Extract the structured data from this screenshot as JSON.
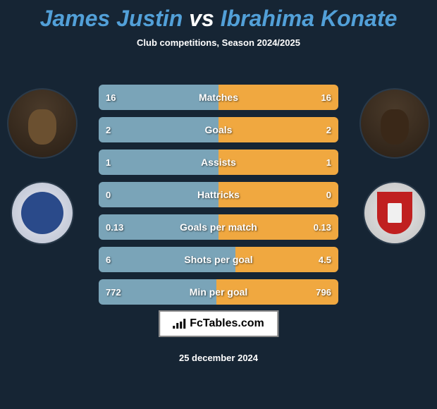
{
  "title": {
    "player1": "James Justin",
    "vs": "vs",
    "player2": "Ibrahima Konate"
  },
  "subtitle": "Club competitions, Season 2024/2025",
  "date_line": "25 december 2024",
  "brand": "FcTables.com",
  "colors": {
    "bg": "#162534",
    "bar_left": "#7aa4b8",
    "bar_right": "#f0a840",
    "accent": "#52a0d8",
    "text": "#ffffff"
  },
  "stats": [
    {
      "label": "Matches",
      "left_val": "16",
      "right_val": "16",
      "left_pct": 50,
      "right_pct": 50
    },
    {
      "label": "Goals",
      "left_val": "2",
      "right_val": "2",
      "left_pct": 50,
      "right_pct": 50
    },
    {
      "label": "Assists",
      "left_val": "1",
      "right_val": "1",
      "left_pct": 50,
      "right_pct": 50
    },
    {
      "label": "Hattricks",
      "left_val": "0",
      "right_val": "0",
      "left_pct": 50,
      "right_pct": 50
    },
    {
      "label": "Goals per match",
      "left_val": "0.13",
      "right_val": "0.13",
      "left_pct": 50,
      "right_pct": 50
    },
    {
      "label": "Shots per goal",
      "left_val": "6",
      "right_val": "4.5",
      "left_pct": 57,
      "right_pct": 43
    },
    {
      "label": "Min per goal",
      "left_val": "772",
      "right_val": "796",
      "left_pct": 49,
      "right_pct": 51
    }
  ]
}
